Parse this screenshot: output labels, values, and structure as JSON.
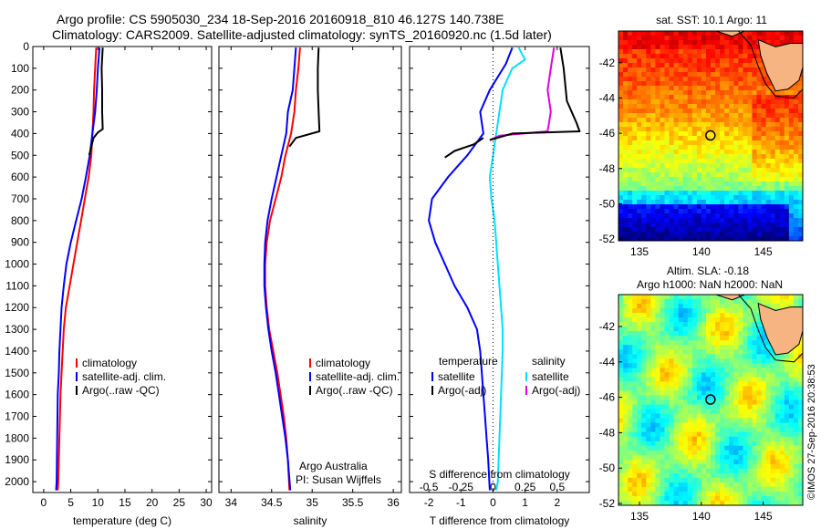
{
  "header": {
    "line1": "Argo profile: CS 5905030_234 18-Sep-2016 20160918_810 46.127S 140.738E",
    "line2": "Climatology: CARS2009. Satellite-adjusted climatology: synTS_20160920.nc (1.5d later)"
  },
  "watermark": "©IMOS 27-Sep-2016 20:38:53",
  "colors": {
    "climatology": "#ff0000",
    "satellite": "#0000ff",
    "argo": "#000000",
    "sal_satellite": "#00e0ff",
    "sal_argo": "#e000e0",
    "land": "#f5b482"
  },
  "chart_data": [
    {
      "type": "line",
      "id": "temperature",
      "xlabel": "temperature (deg C)",
      "ylabel": "",
      "xlim": [
        -2,
        31
      ],
      "xticks": [
        0,
        5,
        10,
        15,
        20,
        25,
        30
      ],
      "ylim": [
        0,
        2050
      ],
      "yticks": [
        0,
        100,
        200,
        300,
        400,
        500,
        600,
        700,
        800,
        900,
        1000,
        1100,
        1200,
        1300,
        1400,
        1500,
        1600,
        1700,
        1800,
        1900,
        2000
      ],
      "legend": [
        "climatology",
        "satellite-adj. clim.",
        "Argo(..raw -QC)"
      ],
      "series": [
        {
          "name": "climatology",
          "color": "#ff0000",
          "points": [
            [
              9.7,
              5
            ],
            [
              9.5,
              100
            ],
            [
              9.3,
              200
            ],
            [
              9.2,
              300
            ],
            [
              9.0,
              400
            ],
            [
              8.8,
              500
            ],
            [
              8.3,
              600
            ],
            [
              7.6,
              700
            ],
            [
              6.9,
              800
            ],
            [
              6.2,
              900
            ],
            [
              5.5,
              1000
            ],
            [
              4.8,
              1100
            ],
            [
              4.1,
              1200
            ],
            [
              3.7,
              1300
            ],
            [
              3.5,
              1400
            ],
            [
              3.3,
              1500
            ],
            [
              3.1,
              1600
            ],
            [
              2.9,
              1800
            ],
            [
              2.7,
              2000
            ],
            [
              2.6,
              2040
            ]
          ]
        },
        {
          "name": "satellite-adj. clim.",
          "color": "#0000ff",
          "points": [
            [
              10.3,
              5
            ],
            [
              10.0,
              100
            ],
            [
              9.8,
              200
            ],
            [
              9.5,
              300
            ],
            [
              9.0,
              400
            ],
            [
              8.5,
              500
            ],
            [
              7.8,
              600
            ],
            [
              7.0,
              700
            ],
            [
              6.0,
              800
            ],
            [
              5.0,
              900
            ],
            [
              4.2,
              1000
            ],
            [
              3.7,
              1100
            ],
            [
              3.3,
              1200
            ],
            [
              3.1,
              1300
            ],
            [
              2.9,
              1400
            ],
            [
              2.8,
              1500
            ],
            [
              2.6,
              1600
            ],
            [
              2.5,
              1800
            ],
            [
              2.4,
              2000
            ],
            [
              2.3,
              2040
            ]
          ]
        },
        {
          "name": "Argo(..raw -QC)",
          "color": "#000000",
          "points": [
            [
              10.9,
              5
            ],
            [
              10.7,
              100
            ],
            [
              10.8,
              200
            ],
            [
              10.8,
              300
            ],
            [
              10.9,
              380
            ],
            [
              10.0,
              395
            ],
            [
              9.2,
              420
            ],
            [
              8.4,
              500
            ]
          ]
        }
      ]
    },
    {
      "type": "line",
      "id": "salinity",
      "xlabel": "salinity",
      "ylabel": "",
      "xlim": [
        33.85,
        36.1
      ],
      "xticks": [
        34,
        34.5,
        35,
        35.5,
        36
      ],
      "ylim": [
        0,
        2050
      ],
      "legend": [
        "climatology",
        "satellite-adj. clim.",
        "Argo(..raw -QC)"
      ],
      "annotations": [
        "Argo Australia",
        "PI: Susan Wijffels"
      ],
      "series": [
        {
          "name": "climatology",
          "color": "#ff0000",
          "points": [
            [
              34.85,
              5
            ],
            [
              34.83,
              100
            ],
            [
              34.8,
              200
            ],
            [
              34.78,
              300
            ],
            [
              34.74,
              400
            ],
            [
              34.67,
              500
            ],
            [
              34.62,
              600
            ],
            [
              34.55,
              700
            ],
            [
              34.48,
              800
            ],
            [
              34.44,
              900
            ],
            [
              34.42,
              1000
            ],
            [
              34.42,
              1100
            ],
            [
              34.44,
              1200
            ],
            [
              34.47,
              1300
            ],
            [
              34.52,
              1400
            ],
            [
              34.57,
              1500
            ],
            [
              34.61,
              1600
            ],
            [
              34.65,
              1700
            ],
            [
              34.68,
              1800
            ],
            [
              34.7,
              1900
            ],
            [
              34.72,
              2040
            ]
          ]
        },
        {
          "name": "satellite-adj. clim.",
          "color": "#0000ff",
          "points": [
            [
              34.8,
              5
            ],
            [
              34.78,
              100
            ],
            [
              34.76,
              200
            ],
            [
              34.7,
              300
            ],
            [
              34.68,
              400
            ],
            [
              34.62,
              500
            ],
            [
              34.56,
              600
            ],
            [
              34.5,
              700
            ],
            [
              34.45,
              800
            ],
            [
              34.42,
              900
            ],
            [
              34.41,
              1000
            ],
            [
              34.41,
              1100
            ],
            [
              34.43,
              1200
            ],
            [
              34.46,
              1300
            ],
            [
              34.5,
              1400
            ],
            [
              34.55,
              1500
            ],
            [
              34.59,
              1600
            ],
            [
              34.63,
              1700
            ],
            [
              34.67,
              1800
            ],
            [
              34.7,
              1900
            ],
            [
              34.73,
              2040
            ]
          ]
        },
        {
          "name": "Argo(..raw -QC)",
          "color": "#000000",
          "points": [
            [
              35.08,
              5
            ],
            [
              35.07,
              100
            ],
            [
              35.07,
              200
            ],
            [
              35.08,
              300
            ],
            [
              35.09,
              390
            ],
            [
              34.8,
              420
            ],
            [
              34.72,
              460
            ]
          ]
        }
      ]
    },
    {
      "type": "line",
      "id": "difference",
      "xlabel": "T difference from climatology",
      "top_xlabel": "S difference from climatology",
      "ylabel": "",
      "xlim": [
        -2.6,
        3.0
      ],
      "xticks": [
        -2,
        -1,
        0,
        1,
        2
      ],
      "top_xticks": [
        "-0.5",
        "-0.25",
        "0",
        "0.25",
        "0.5"
      ],
      "top_xtick_values": [
        -0.5,
        -0.25,
        0,
        0.25,
        0.5
      ],
      "ylim": [
        0,
        2050
      ],
      "legend_titles": [
        "temperature",
        "salinity"
      ],
      "legend": [
        "satellite",
        "Argo(-adj)",
        "satellite",
        "Argo(-adj)"
      ],
      "series": [
        {
          "name": "temperature satellite",
          "color": "#0000ff",
          "points": [
            [
              0.6,
              5
            ],
            [
              0.4,
              80
            ],
            [
              -0.1,
              200
            ],
            [
              -0.4,
              300
            ],
            [
              -0.3,
              400
            ],
            [
              -0.8,
              500
            ],
            [
              -1.4,
              600
            ],
            [
              -1.9,
              700
            ],
            [
              -2.0,
              800
            ],
            [
              -1.8,
              900
            ],
            [
              -1.5,
              1000
            ],
            [
              -1.2,
              1100
            ],
            [
              -0.8,
              1200
            ],
            [
              -0.5,
              1300
            ],
            [
              -0.4,
              1400
            ],
            [
              -0.35,
              1500
            ],
            [
              -0.3,
              1600
            ],
            [
              -0.25,
              1700
            ],
            [
              -0.2,
              1800
            ],
            [
              -0.15,
              1900
            ],
            [
              -0.1,
              2040
            ]
          ]
        },
        {
          "name": "temperature Argo(-adj)",
          "color": "#000000",
          "points": [
            [
              -0.3,
              420
            ],
            [
              -0.6,
              450
            ],
            [
              -1.2,
              480
            ],
            [
              -1.5,
              510
            ]
          ]
        },
        {
          "name": "salinity satellite",
          "color": "#00e0ff",
          "points": [
            [
              0.8,
              5
            ],
            [
              1.0,
              60
            ],
            [
              0.6,
              100
            ],
            [
              0.3,
              200
            ],
            [
              0.2,
              300
            ],
            [
              0.1,
              400
            ],
            [
              0.0,
              500
            ],
            [
              -0.1,
              600
            ],
            [
              -0.05,
              700
            ],
            [
              0.05,
              800
            ],
            [
              0.1,
              900
            ],
            [
              0.15,
              1000
            ],
            [
              0.2,
              1100
            ],
            [
              0.25,
              1200
            ],
            [
              0.3,
              1300
            ],
            [
              0.3,
              1400
            ],
            [
              0.25,
              1600
            ],
            [
              0.2,
              1800
            ],
            [
              0.15,
              2000
            ],
            [
              0.1,
              2040
            ]
          ]
        },
        {
          "name": "salinity Argo(-adj)",
          "color": "#e000e0",
          "points": [
            [
              1.9,
              5
            ],
            [
              1.8,
              100
            ],
            [
              1.7,
              200
            ],
            [
              1.8,
              300
            ],
            [
              1.7,
              390
            ],
            [
              0.2,
              410
            ],
            [
              -0.1,
              430
            ]
          ]
        },
        {
          "name": "Argo(-adj) total",
          "color": "#000000",
          "points": [
            [
              2.1,
              5
            ],
            [
              2.2,
              100
            ],
            [
              2.3,
              250
            ],
            [
              2.6,
              350
            ],
            [
              2.7,
              390
            ],
            [
              0.6,
              400
            ],
            [
              -0.1,
              430
            ]
          ]
        }
      ]
    },
    {
      "type": "heatmap",
      "id": "sst_map",
      "title": "sat. SST: 10.1  Argo: 11",
      "xlim": [
        133.3,
        148.2
      ],
      "ylim": [
        -52.1,
        -40.2
      ],
      "xticks": [
        135,
        140,
        145
      ],
      "yticks": [
        -42,
        -44,
        -46,
        -48,
        -50,
        -52
      ],
      "argo_position": [
        140.738,
        -46.127
      ]
    },
    {
      "type": "heatmap",
      "id": "sla_map",
      "title": "Altim. SLA: -0.18",
      "subtitle": "Argo h1000: NaN h2000: NaN",
      "xlim": [
        133.3,
        148.2
      ],
      "ylim": [
        -52.1,
        -40.2
      ],
      "xticks": [
        135,
        140,
        145
      ],
      "yticks": [
        -42,
        -44,
        -46,
        -48,
        -50,
        -52
      ],
      "argo_position": [
        140.738,
        -46.127
      ]
    }
  ]
}
